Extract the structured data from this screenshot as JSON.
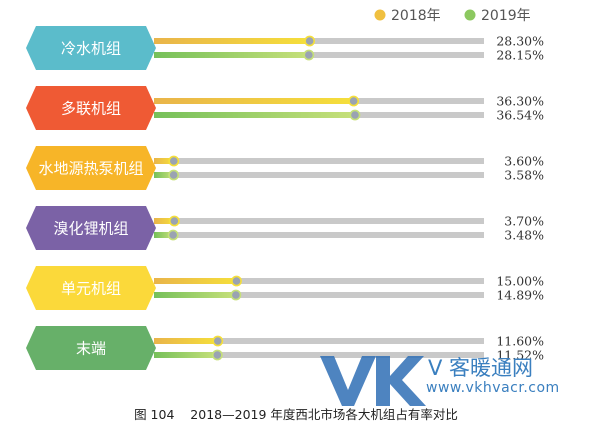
{
  "chart_data": {
    "type": "bar",
    "orientation": "horizontal",
    "title": "",
    "categories": [
      "冷水机组",
      "多联机组",
      "水地源热泵机组",
      "溴化锂机组",
      "单元机组",
      "末端"
    ],
    "series": [
      {
        "name": "2018年",
        "values": [
          28.3,
          36.3,
          3.6,
          3.7,
          15.0,
          11.6
        ],
        "labels": [
          "28.30%",
          "36.30%",
          "3.60%",
          "3.70%",
          "15.00%",
          "11.60%"
        ]
      },
      {
        "name": "2019年",
        "values": [
          28.15,
          36.54,
          3.58,
          3.48,
          14.89,
          11.52
        ],
        "labels": [
          "28.15%",
          "36.54%",
          "3.58%",
          "3.48%",
          "14.89%",
          "11.52%"
        ]
      }
    ],
    "unit": "%",
    "xlim": [
      0,
      60
    ],
    "legend_position": "top-right"
  },
  "colors": {
    "categories": [
      "#5bbccb",
      "#ef5a34",
      "#f7b528",
      "#7b62a6",
      "#fbd93a",
      "#67b069"
    ],
    "series_2018_gradient": [
      "#e9b44a",
      "#f5df3b"
    ],
    "series_2019_gradient": [
      "#76c05a",
      "#c6e07a"
    ],
    "track": "#c9c9c9",
    "legend_2018": "#f0c040",
    "legend_2019": "#8cc860"
  },
  "caption": "图 104    2018—2019 年度西北市场各大机组占有率对比",
  "watermark": {
    "logo": "VK",
    "text": "V 客暖通网",
    "url": "www.vkhvacr.com"
  }
}
